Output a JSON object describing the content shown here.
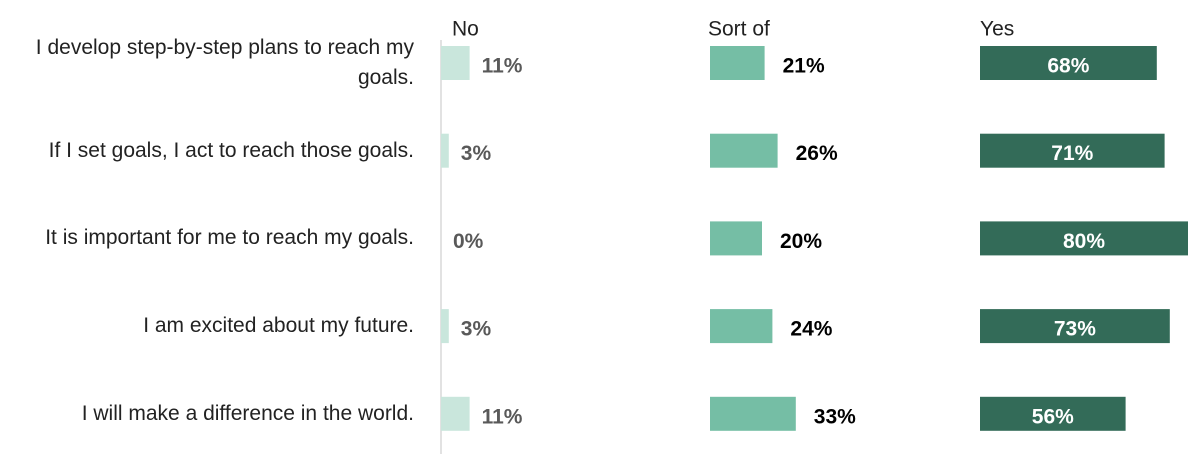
{
  "chart_data": {
    "type": "bar",
    "categories": [
      "I develop step-by-step plans to reach my goals.",
      "If I set goals, I act to reach those goals.",
      "It is important for me to reach my goals.",
      "I am excited about my future.",
      "I will make a difference in the world."
    ],
    "series": [
      {
        "name": "No",
        "color": "#c9e6dc",
        "values": [
          11,
          3,
          0,
          3,
          11
        ],
        "value_labels": [
          "11%",
          "3%",
          "0%",
          "3%",
          "11%"
        ]
      },
      {
        "name": "Sort of",
        "color": "#75bea5",
        "values": [
          21,
          26,
          20,
          24,
          33
        ],
        "value_labels": [
          "21%",
          "26%",
          "20%",
          "24%",
          "33%"
        ]
      },
      {
        "name": "Yes",
        "color": "#336b58",
        "values": [
          68,
          71,
          80,
          73,
          56
        ],
        "value_labels": [
          "68%",
          "71%",
          "80%",
          "73%",
          "56%"
        ]
      }
    ]
  }
}
